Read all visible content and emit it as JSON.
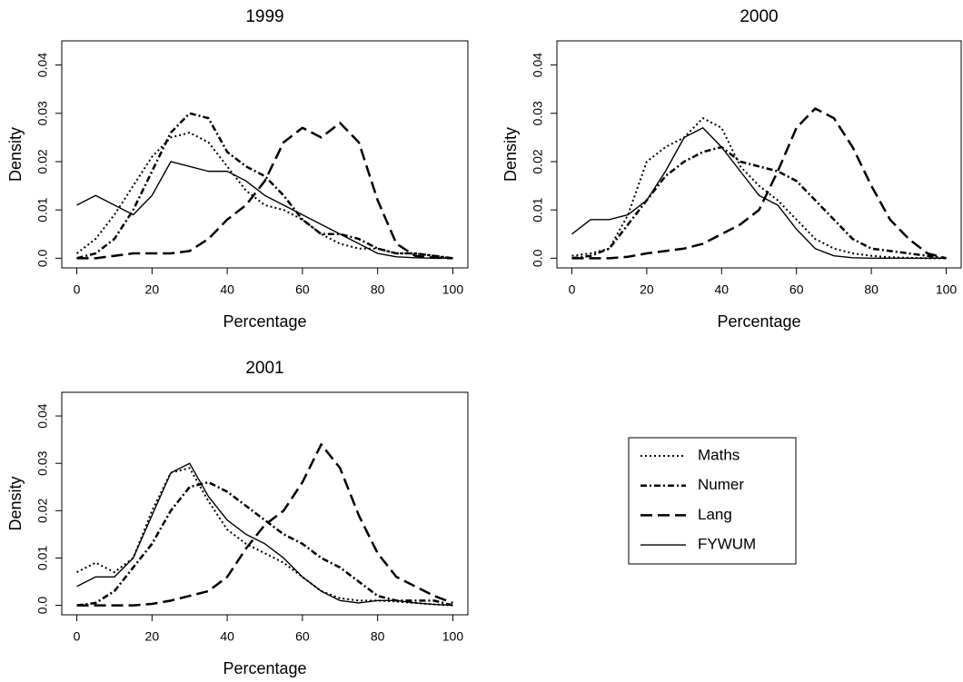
{
  "chart_data": [
    {
      "type": "line",
      "title": "1999",
      "xlabel": "Percentage",
      "ylabel": "Density",
      "x": [
        0,
        5,
        10,
        15,
        20,
        25,
        30,
        35,
        40,
        45,
        50,
        55,
        60,
        65,
        70,
        75,
        80,
        85,
        90,
        95,
        100
      ],
      "xlim": [
        -4,
        104
      ],
      "ylim": [
        -0.002,
        0.045
      ],
      "xticks": [
        0,
        20,
        40,
        60,
        80,
        100
      ],
      "yticks": [
        {
          "value": 0,
          "label": "0.0"
        },
        0.01,
        0.02,
        0.03,
        0.04
      ],
      "series": [
        {
          "name": "Maths",
          "color": "#000000",
          "dash": "2,3",
          "width": 2,
          "values": [
            0.001,
            0.004,
            0.009,
            0.015,
            0.021,
            0.025,
            0.026,
            0.024,
            0.019,
            0.014,
            0.011,
            0.01,
            0.008,
            0.005,
            0.003,
            0.002,
            0.002,
            0.001,
            0.001,
            0.0005,
            0
          ]
        },
        {
          "name": "Numer",
          "color": "#000000",
          "dash": "7,3,2,3",
          "width": 2.5,
          "values": [
            0,
            0.001,
            0.004,
            0.01,
            0.018,
            0.026,
            0.03,
            0.029,
            0.022,
            0.019,
            0.017,
            0.013,
            0.008,
            0.005,
            0.005,
            0.004,
            0.002,
            0.001,
            0.001,
            0.0005,
            0
          ]
        },
        {
          "name": "Lang",
          "color": "#000000",
          "dash": "13,6",
          "width": 2.5,
          "values": [
            0,
            0,
            0.0005,
            0.001,
            0.001,
            0.001,
            0.0015,
            0.004,
            0.008,
            0.011,
            0.016,
            0.024,
            0.027,
            0.025,
            0.028,
            0.024,
            0.012,
            0.003,
            0.0005,
            0.0001,
            0
          ]
        },
        {
          "name": "FYWUM",
          "color": "#000000",
          "dash": "none",
          "width": 1.4,
          "values": [
            0.011,
            0.013,
            0.011,
            0.009,
            0.013,
            0.02,
            0.019,
            0.018,
            0.018,
            0.016,
            0.013,
            0.011,
            0.009,
            0.007,
            0.005,
            0.003,
            0.001,
            0.0003,
            0.0001,
            0,
            0
          ]
        }
      ]
    },
    {
      "type": "line",
      "title": "2000",
      "xlabel": "Percentage",
      "ylabel": "Density",
      "x": [
        0,
        5,
        10,
        15,
        20,
        25,
        30,
        35,
        40,
        45,
        50,
        55,
        60,
        65,
        70,
        75,
        80,
        85,
        90,
        95,
        100
      ],
      "xlim": [
        -4,
        104
      ],
      "ylim": [
        -0.002,
        0.045
      ],
      "xticks": [
        0,
        20,
        40,
        60,
        80,
        100
      ],
      "yticks": [
        {
          "value": 0,
          "label": "0.0"
        },
        0.01,
        0.02,
        0.03,
        0.04
      ],
      "series": [
        {
          "color": "#000000",
          "dash": "2,3",
          "width": 2,
          "values": [
            0.0005,
            0.001,
            0.002,
            0.009,
            0.02,
            0.023,
            0.025,
            0.029,
            0.027,
            0.019,
            0.015,
            0.012,
            0.008,
            0.004,
            0.002,
            0.001,
            0.0005,
            0.0002,
            0.0001,
            0,
            0
          ]
        },
        {
          "color": "#000000",
          "dash": "7,3,2,3",
          "width": 2.5,
          "values": [
            0,
            0.0005,
            0.002,
            0.007,
            0.012,
            0.017,
            0.02,
            0.022,
            0.023,
            0.02,
            0.019,
            0.018,
            0.016,
            0.012,
            0.008,
            0.004,
            0.002,
            0.0015,
            0.001,
            0.0005,
            0
          ]
        },
        {
          "color": "#000000",
          "dash": "13,6",
          "width": 2.5,
          "values": [
            0,
            0,
            0,
            0.0003,
            0.001,
            0.0015,
            0.002,
            0.003,
            0.005,
            0.007,
            0.01,
            0.018,
            0.027,
            0.031,
            0.029,
            0.023,
            0.015,
            0.008,
            0.004,
            0.001,
            0
          ]
        },
        {
          "color": "#000000",
          "dash": "none",
          "width": 1.4,
          "values": [
            0.005,
            0.008,
            0.008,
            0.009,
            0.012,
            0.018,
            0.025,
            0.027,
            0.023,
            0.018,
            0.013,
            0.011,
            0.006,
            0.002,
            0.0005,
            0.0001,
            0,
            0,
            0,
            0,
            0
          ]
        }
      ]
    },
    {
      "type": "line",
      "title": "2001",
      "xlabel": "Percentage",
      "ylabel": "Density",
      "x": [
        0,
        5,
        10,
        15,
        20,
        25,
        30,
        35,
        40,
        45,
        50,
        55,
        60,
        65,
        70,
        75,
        80,
        85,
        90,
        95,
        100
      ],
      "xlim": [
        -4,
        104
      ],
      "ylim": [
        -0.002,
        0.045
      ],
      "xticks": [
        0,
        20,
        40,
        60,
        80,
        100
      ],
      "yticks": [
        {
          "value": 0,
          "label": "0.0"
        },
        0.01,
        0.02,
        0.03,
        0.04
      ],
      "series": [
        {
          "color": "#000000",
          "dash": "2,3",
          "width": 2,
          "values": [
            0.007,
            0.009,
            0.007,
            0.01,
            0.02,
            0.028,
            0.029,
            0.022,
            0.016,
            0.013,
            0.011,
            0.009,
            0.006,
            0.003,
            0.0015,
            0.001,
            0.001,
            0.0008,
            0.0005,
            0.0002,
            0
          ]
        },
        {
          "color": "#000000",
          "dash": "7,3,2,3",
          "width": 2.5,
          "values": [
            0,
            0.0005,
            0.003,
            0.008,
            0.013,
            0.02,
            0.025,
            0.026,
            0.024,
            0.021,
            0.018,
            0.015,
            0.013,
            0.01,
            0.008,
            0.005,
            0.002,
            0.001,
            0.001,
            0.001,
            0
          ]
        },
        {
          "color": "#000000",
          "dash": "13,6",
          "width": 2.5,
          "values": [
            0,
            0,
            0,
            0,
            0.0003,
            0.001,
            0.002,
            0.003,
            0.006,
            0.012,
            0.017,
            0.02,
            0.026,
            0.034,
            0.029,
            0.019,
            0.011,
            0.006,
            0.004,
            0.002,
            0.0005
          ]
        },
        {
          "color": "#000000",
          "dash": "none",
          "width": 1.4,
          "values": [
            0.004,
            0.006,
            0.006,
            0.01,
            0.019,
            0.028,
            0.03,
            0.023,
            0.018,
            0.015,
            0.013,
            0.01,
            0.006,
            0.003,
            0.001,
            0.0005,
            0.001,
            0.001,
            0.0005,
            0.0002,
            0
          ]
        }
      ]
    }
  ]
}
